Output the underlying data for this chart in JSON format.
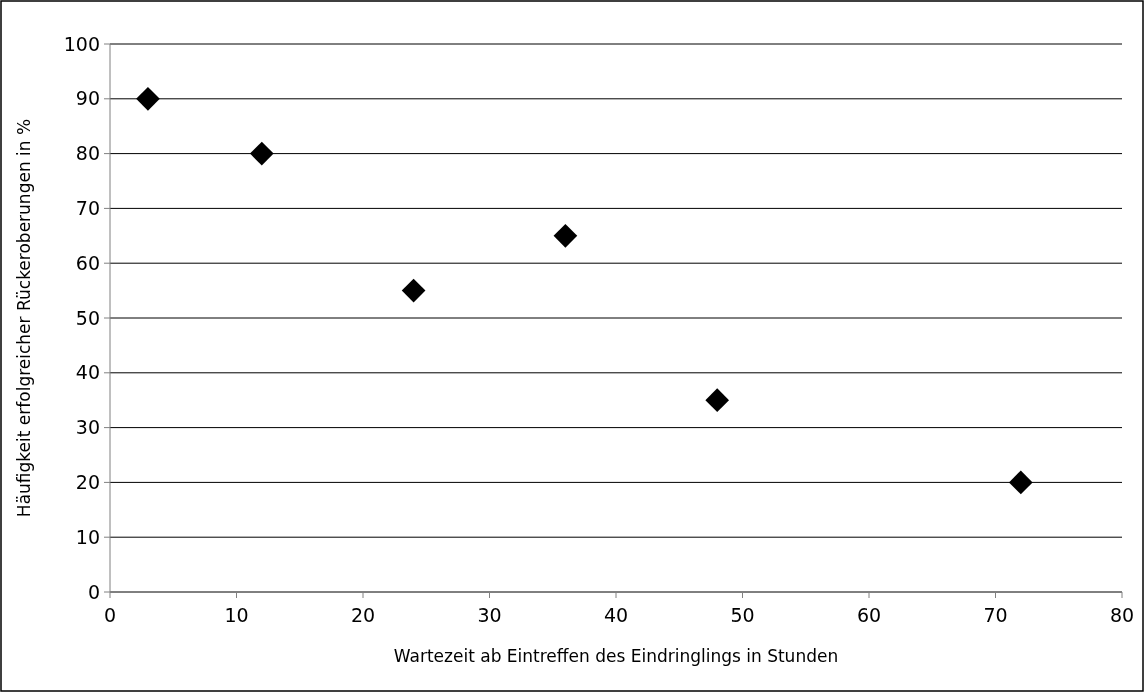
{
  "chart_data": {
    "type": "scatter",
    "xlabel": "Wartezeit ab Eintreffen des Eindringlings in Stunden",
    "ylabel": "Häufigkeit erfolgreicher Rückeroberungen in %",
    "x": [
      3,
      12,
      24,
      36,
      48,
      72
    ],
    "series": [
      {
        "color": "#000000",
        "values": [
          90,
          80,
          55,
          65,
          35,
          20
        ]
      }
    ],
    "xlim": [
      0,
      80
    ],
    "xticks": [
      0,
      10,
      20,
      30,
      40,
      50,
      60,
      70,
      80
    ],
    "ylim": [
      0,
      100
    ],
    "yticks": [
      0,
      10,
      20,
      30,
      40,
      50,
      60,
      70,
      80,
      90,
      100
    ],
    "grid": "y",
    "marker": "diamond"
  }
}
